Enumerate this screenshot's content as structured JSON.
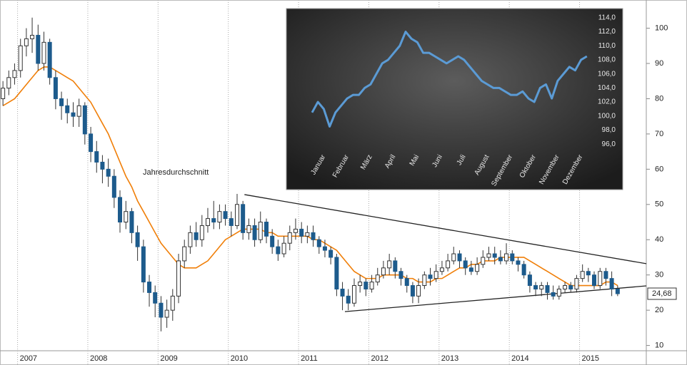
{
  "chart_data": [
    {
      "type": "candlestick",
      "xlim": [
        2006.75,
        2015.95
      ],
      "xticks": [
        2007,
        2008,
        2009,
        2010,
        2011,
        2012,
        2013,
        2014,
        2015
      ],
      "ylim": [
        8.5,
        108
      ],
      "yticks": [
        10,
        20,
        30,
        40,
        50,
        60,
        70,
        80,
        90,
        100
      ],
      "up_color": "#ffffff",
      "down_color": "#1d5b8c",
      "wick_color": "#333333",
      "x": [
        2006.792,
        2006.875,
        2006.958,
        2007.042,
        2007.125,
        2007.208,
        2007.292,
        2007.375,
        2007.458,
        2007.542,
        2007.625,
        2007.708,
        2007.792,
        2007.875,
        2007.958,
        2008.042,
        2008.125,
        2008.208,
        2008.292,
        2008.375,
        2008.458,
        2008.542,
        2008.625,
        2008.708,
        2008.792,
        2008.875,
        2008.958,
        2009.042,
        2009.125,
        2009.208,
        2009.292,
        2009.375,
        2009.458,
        2009.542,
        2009.625,
        2009.708,
        2009.792,
        2009.875,
        2009.958,
        2010.042,
        2010.125,
        2010.208,
        2010.292,
        2010.375,
        2010.458,
        2010.542,
        2010.625,
        2010.708,
        2010.792,
        2010.875,
        2010.958,
        2011.042,
        2011.125,
        2011.208,
        2011.292,
        2011.375,
        2011.458,
        2011.542,
        2011.625,
        2011.708,
        2011.792,
        2011.875,
        2011.958,
        2012.042,
        2012.125,
        2012.208,
        2012.292,
        2012.375,
        2012.458,
        2012.542,
        2012.625,
        2012.708,
        2012.792,
        2012.875,
        2012.958,
        2013.042,
        2013.125,
        2013.208,
        2013.292,
        2013.375,
        2013.458,
        2013.542,
        2013.625,
        2013.708,
        2013.792,
        2013.875,
        2013.958,
        2014.042,
        2014.125,
        2014.208,
        2014.292,
        2014.375,
        2014.458,
        2014.542,
        2014.625,
        2014.708,
        2014.792,
        2014.875,
        2014.958,
        2015.042,
        2015.125,
        2015.208,
        2015.292,
        2015.375,
        2015.458,
        2015.542
      ],
      "open": [
        80,
        83,
        86,
        88,
        95,
        97,
        98,
        90,
        96,
        86,
        80,
        78,
        76,
        75,
        78,
        70,
        65,
        62,
        60,
        58,
        52,
        45,
        48,
        42,
        38,
        28,
        25,
        22,
        18,
        20,
        24,
        34,
        38,
        42,
        40,
        44,
        46,
        45,
        48,
        46,
        44,
        50,
        42,
        44,
        40,
        45,
        41,
        38,
        36,
        39,
        42,
        43,
        41,
        42,
        40,
        38,
        37,
        35,
        26,
        24,
        22,
        27,
        28,
        26,
        28,
        30,
        32,
        34,
        31,
        29,
        27,
        24,
        27,
        30,
        29,
        31,
        32,
        34,
        36,
        34,
        32,
        31,
        33,
        35,
        36,
        35,
        34,
        36,
        34,
        33,
        30,
        27,
        26,
        27,
        25,
        24,
        26,
        27,
        26,
        29,
        31,
        30,
        27,
        31,
        29,
        26
      ],
      "high": [
        85,
        88,
        90,
        97,
        100,
        103,
        101,
        99,
        97,
        88,
        82,
        80,
        79,
        80,
        79,
        72,
        68,
        64,
        63,
        60,
        54,
        51,
        49,
        44,
        40,
        30,
        27,
        24,
        23,
        26,
        36,
        40,
        44,
        45,
        47,
        49,
        51,
        50,
        50,
        48,
        53,
        51,
        46,
        46,
        48,
        46,
        43,
        40,
        41,
        44,
        46,
        45,
        44,
        44,
        41,
        40,
        38,
        36,
        28,
        26,
        29,
        30,
        29,
        30,
        32,
        34,
        36,
        35,
        32,
        30,
        28,
        29,
        31,
        32,
        33,
        34,
        36,
        38,
        37,
        35,
        34,
        35,
        37,
        38,
        38,
        37,
        39,
        37,
        35,
        34,
        31,
        28,
        28,
        28,
        27,
        27,
        28,
        28,
        30,
        33,
        32,
        31,
        32,
        32,
        31,
        27
      ],
      "low": [
        78,
        81,
        84,
        86,
        92,
        93,
        88,
        88,
        84,
        77,
        74,
        73,
        72,
        72,
        67,
        62,
        59,
        56,
        55,
        49,
        42,
        43,
        39,
        34,
        25,
        21,
        18,
        14,
        15,
        17,
        22,
        32,
        36,
        38,
        38,
        42,
        43,
        43,
        44,
        41,
        43,
        40,
        40,
        38,
        39,
        39,
        36,
        34,
        35,
        37,
        40,
        39,
        39,
        38,
        36,
        35,
        33,
        24,
        20,
        20,
        21,
        25,
        24,
        25,
        27,
        29,
        30,
        29,
        27,
        25,
        22,
        22,
        26,
        27,
        28,
        30,
        31,
        33,
        32,
        30,
        30,
        30,
        32,
        34,
        33,
        33,
        33,
        33,
        31,
        29,
        25,
        24,
        24,
        23,
        23,
        23,
        25,
        25,
        25,
        28,
        28,
        26,
        26,
        27,
        24,
        24
      ],
      "close": [
        83,
        86,
        88,
        95,
        97,
        98,
        90,
        96,
        86,
        80,
        78,
        76,
        75,
        78,
        70,
        65,
        62,
        60,
        58,
        52,
        45,
        48,
        42,
        38,
        28,
        25,
        22,
        18,
        20,
        24,
        34,
        38,
        42,
        40,
        44,
        46,
        45,
        48,
        46,
        44,
        50,
        42,
        44,
        40,
        45,
        41,
        38,
        36,
        39,
        42,
        43,
        41,
        42,
        40,
        38,
        37,
        35,
        26,
        24,
        22,
        27,
        28,
        26,
        28,
        30,
        32,
        34,
        31,
        29,
        27,
        24,
        27,
        30,
        29,
        31,
        32,
        34,
        36,
        34,
        32,
        31,
        33,
        35,
        36,
        35,
        34,
        36,
        34,
        33,
        30,
        27,
        26,
        27,
        25,
        24,
        26,
        27,
        26,
        29,
        31,
        30,
        27,
        31,
        29,
        26,
        24.68
      ],
      "last_label": "24,68",
      "series": [
        {
          "name": "Jahresdurchschnitt",
          "color": "#f07f09",
          "values": [
            78,
            79,
            80,
            82,
            84,
            86,
            88,
            89,
            89,
            88,
            87,
            86,
            85,
            83,
            81,
            79,
            76,
            73,
            70,
            66,
            62,
            58,
            55,
            51,
            48,
            45,
            42,
            39,
            37,
            35,
            33,
            32,
            32,
            32,
            33,
            34,
            36,
            38,
            40,
            41,
            42,
            43,
            43,
            43,
            43,
            42,
            42,
            41,
            41,
            41,
            41,
            41,
            41,
            40,
            40,
            39,
            38,
            37,
            35,
            33,
            31,
            30,
            29,
            29,
            29,
            30,
            30,
            30,
            30,
            29,
            29,
            28,
            28,
            28,
            29,
            29,
            30,
            31,
            32,
            32,
            33,
            33,
            34,
            34,
            34,
            35,
            35,
            35,
            35,
            35,
            34,
            33,
            32,
            31,
            30,
            29,
            28,
            27,
            27,
            27,
            27,
            27,
            27,
            28,
            28,
            27
          ]
        }
      ],
      "trendlines": [
        {
          "color": "#222222",
          "x": [
            2010.23,
            2015.95
          ],
          "values": [
            52.8,
            33.2
          ]
        },
        {
          "color": "#222222",
          "x": [
            2011.66,
            2015.95
          ],
          "values": [
            19.6,
            26.9
          ]
        }
      ]
    },
    {
      "type": "line",
      "xlim": [
        0,
        12
      ],
      "ylim": [
        95.2,
        115.1
      ],
      "xticks": [
        {
          "value": 0.5,
          "label": "Januar"
        },
        {
          "value": 1.5,
          "label": "Februar"
        },
        {
          "value": 2.5,
          "label": "März"
        },
        {
          "value": 3.5,
          "label": "April"
        },
        {
          "value": 4.5,
          "label": "Mai"
        },
        {
          "value": 5.5,
          "label": "Juni"
        },
        {
          "value": 6.5,
          "label": "Juli"
        },
        {
          "value": 7.5,
          "label": "August"
        },
        {
          "value": 8.5,
          "label": "September"
        },
        {
          "value": 9.5,
          "label": "Oktober"
        },
        {
          "value": 10.5,
          "label": "November"
        },
        {
          "value": 11.5,
          "label": "Dezember"
        }
      ],
      "yticks": [
        {
          "value": 96,
          "label": "96,0"
        },
        {
          "value": 98,
          "label": "98,0"
        },
        {
          "value": 100,
          "label": "100,0"
        },
        {
          "value": 102,
          "label": "102,0"
        },
        {
          "value": 104,
          "label": "104,0"
        },
        {
          "value": 106,
          "label": "106,0"
        },
        {
          "value": 108,
          "label": "108,0"
        },
        {
          "value": 110,
          "label": "110,0"
        },
        {
          "value": 112,
          "label": "112,0"
        },
        {
          "value": 114,
          "label": "114,0"
        }
      ],
      "x": [
        0,
        0.25,
        0.5,
        0.75,
        1,
        1.25,
        1.5,
        1.75,
        2,
        2.25,
        2.5,
        2.75,
        3,
        3.25,
        3.5,
        3.75,
        4,
        4.25,
        4.5,
        4.75,
        5,
        5.25,
        5.5,
        5.75,
        6,
        6.25,
        6.5,
        6.75,
        7,
        7.25,
        7.5,
        7.75,
        8,
        8.25,
        8.5,
        8.75,
        9,
        9.25,
        9.5,
        9.75,
        10,
        10.25,
        10.5,
        10.75,
        11,
        11.25,
        11.5,
        11.75
      ],
      "series": [
        {
          "color": "#5b9bd5",
          "values": [
            100.5,
            102,
            101,
            98.5,
            100.5,
            101.5,
            102.5,
            103,
            103,
            104,
            104.5,
            106,
            107.5,
            108,
            109,
            110,
            112,
            111,
            110.5,
            109,
            109,
            108.5,
            108,
            107.5,
            108,
            108.5,
            108,
            107,
            106,
            105,
            104.5,
            104,
            104,
            103.5,
            103,
            103,
            103.5,
            102.5,
            102,
            104,
            104.5,
            102.5,
            105,
            106,
            107,
            106.5,
            108,
            108.5
          ]
        }
      ]
    }
  ]
}
